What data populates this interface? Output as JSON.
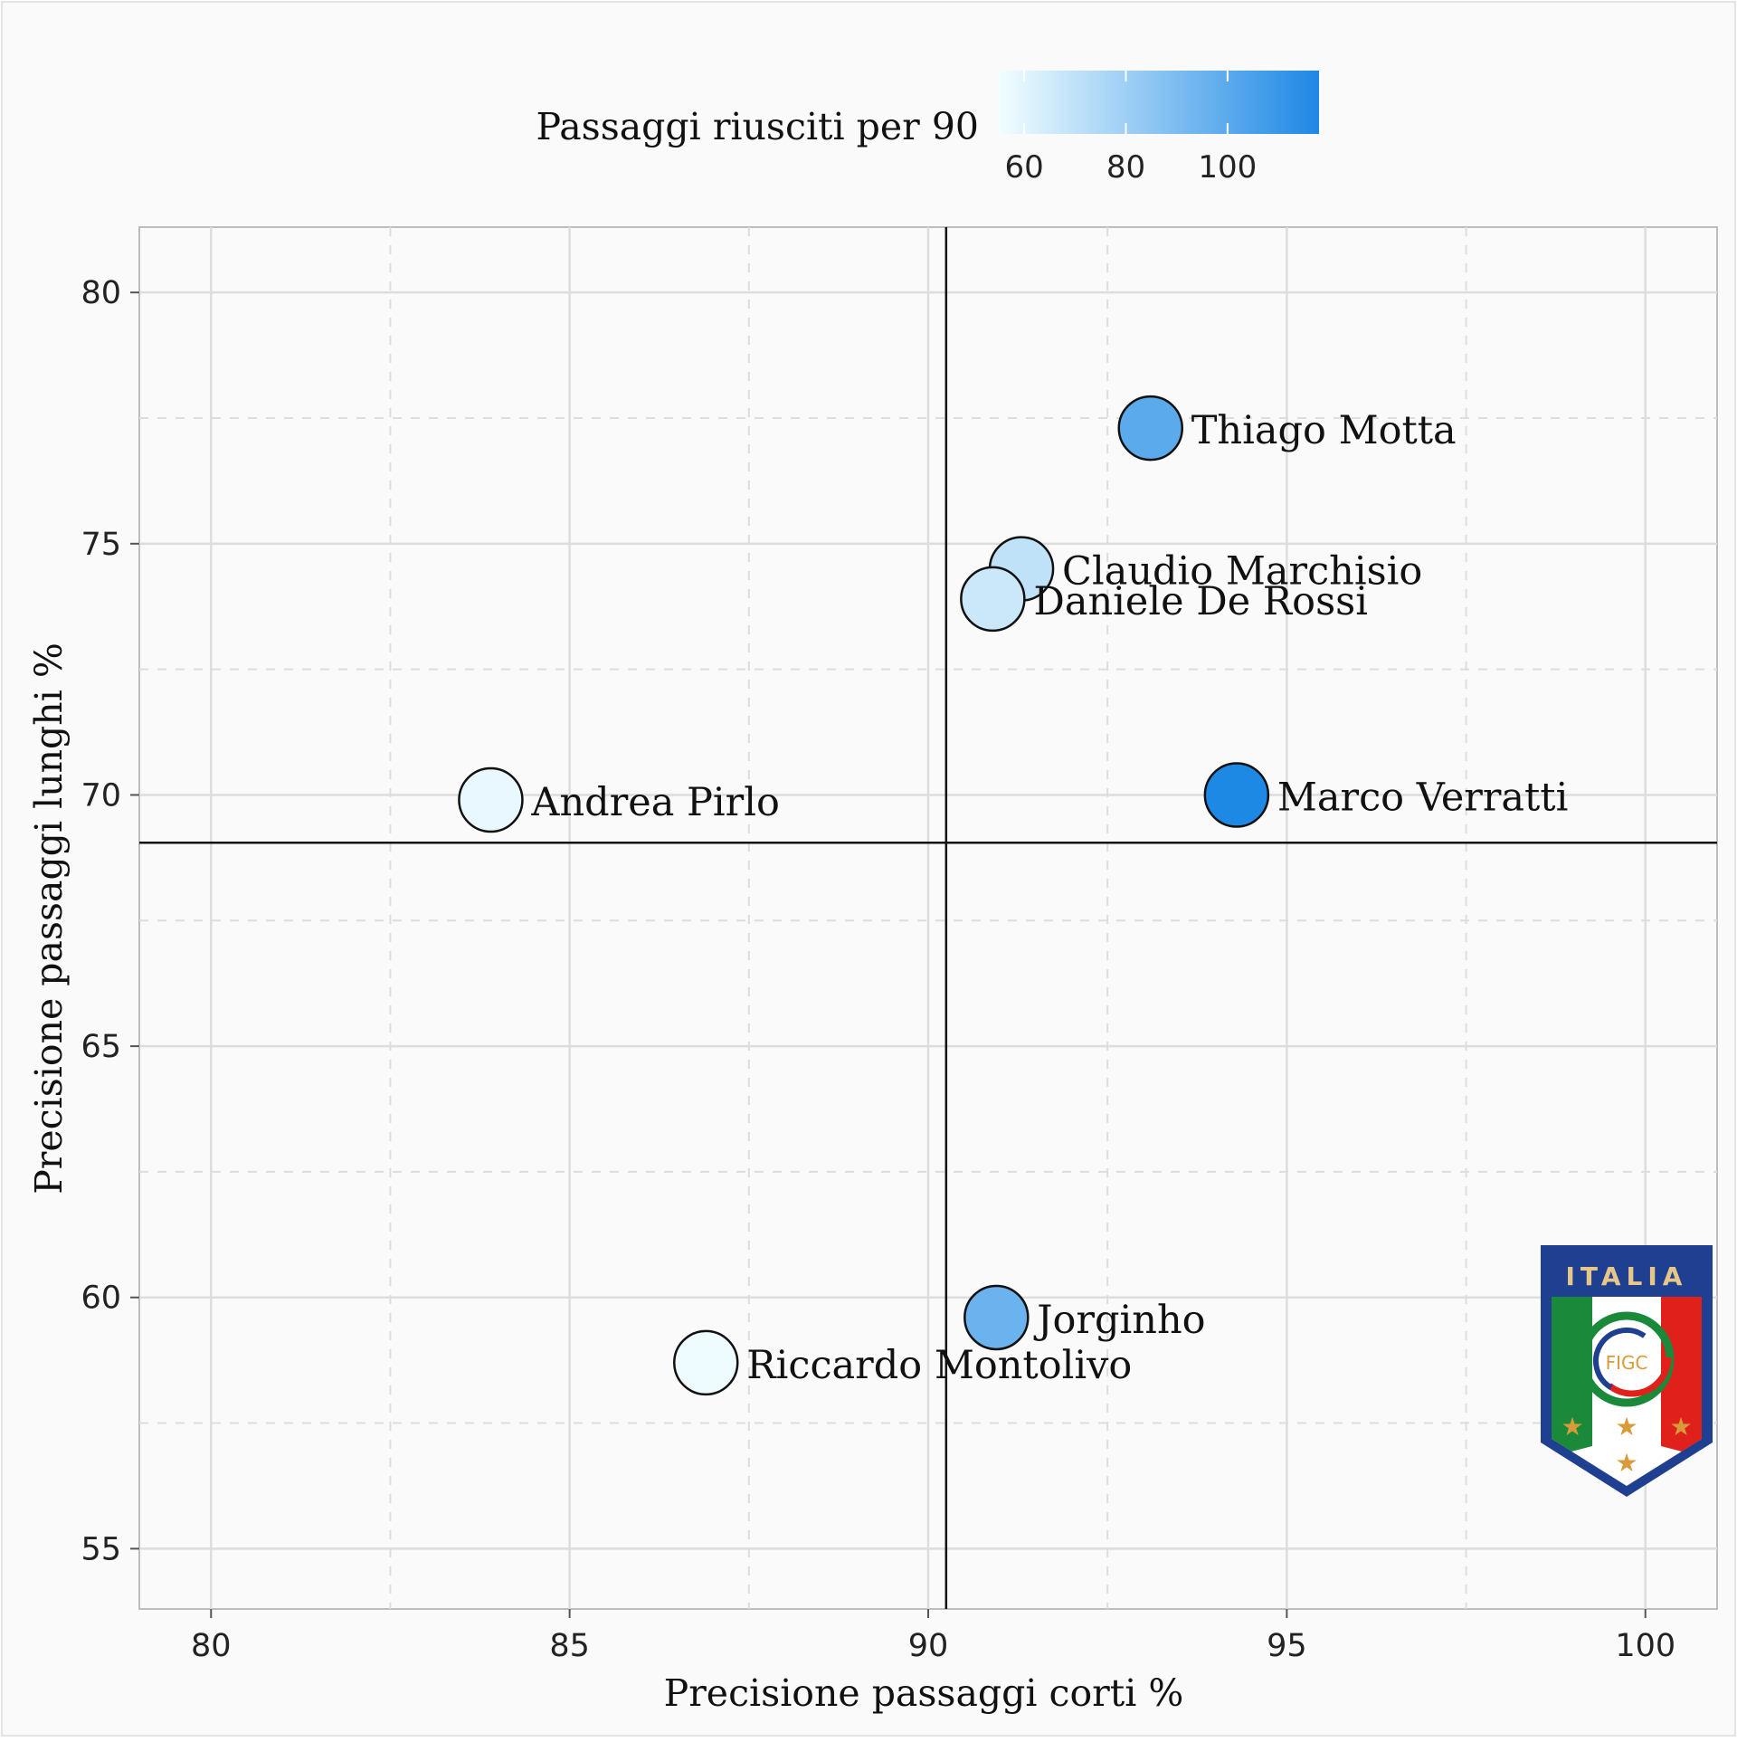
{
  "chart_data": {
    "type": "scatter",
    "title": "",
    "xlabel": "Precisione passaggi corti %",
    "ylabel": "Precisione passaggi lunghi %",
    "xlim": [
      79,
      101
    ],
    "ylim": [
      53.8,
      81.3
    ],
    "x_ticks": [
      80,
      85,
      90,
      95,
      100
    ],
    "y_ticks": [
      55,
      60,
      65,
      70,
      75,
      80
    ],
    "grid": true,
    "reference_lines": {
      "x": 90.25,
      "y": 69.05
    },
    "legend": {
      "title": "Passaggi riusciti per 90",
      "placement": "top",
      "ticks": [
        60,
        80,
        100
      ],
      "range": [
        55,
        118
      ],
      "low_color": "#f2feff",
      "high_color": "#1e88e5"
    },
    "points": [
      {
        "name": "Thiago Motta",
        "x": 93.1,
        "y": 77.3,
        "value": 100
      },
      {
        "name": "Claudio Marchisio",
        "x": 91.3,
        "y": 74.5,
        "value": 70
      },
      {
        "name": "Daniele De Rossi",
        "x": 90.9,
        "y": 73.9,
        "value": 67
      },
      {
        "name": "Andrea Pirlo",
        "x": 83.9,
        "y": 69.9,
        "value": 58
      },
      {
        "name": "Marco Verratti",
        "x": 94.3,
        "y": 70.0,
        "value": 118
      },
      {
        "name": "Jorginho",
        "x": 90.95,
        "y": 59.6,
        "value": 95
      },
      {
        "name": "Riccardo Montolivo",
        "x": 86.9,
        "y": 58.7,
        "value": 56
      }
    ]
  },
  "logo": {
    "text": "ITALIA",
    "badge": "FIGC",
    "colors": {
      "navy": "#1f3f91",
      "green": "#1a8a3a",
      "red": "#e0201b",
      "gold": "#d99b3a"
    }
  }
}
